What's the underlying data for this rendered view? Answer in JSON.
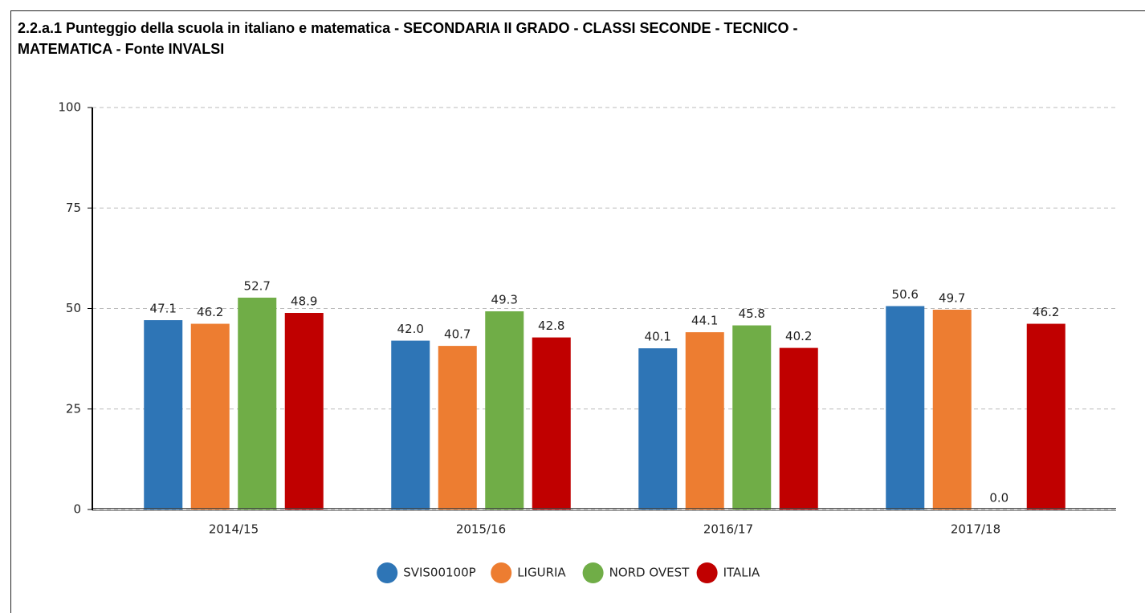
{
  "chart_data": {
    "type": "bar",
    "title": "2.2.a.1 Punteggio della scuola in italiano e matematica - SECONDARIA II GRADO - CLASSI SECONDE - TECNICO -",
    "subtitle": "MATEMATICA - Fonte INVALSI",
    "categories": [
      "2014/15",
      "2015/16",
      "2016/17",
      "2017/18"
    ],
    "series": [
      {
        "name": "SVIS00100P",
        "color": "#2e75b6",
        "values": [
          47.1,
          42.0,
          40.1,
          50.6
        ],
        "value_labels": [
          "47.1",
          "42.0",
          "40.1",
          "50.6"
        ]
      },
      {
        "name": "LIGURIA",
        "color": "#ed7d31",
        "values": [
          46.2,
          40.7,
          44.1,
          49.7
        ],
        "value_labels": [
          "46.2",
          "40.7",
          "44.1",
          "49.7"
        ]
      },
      {
        "name": "NORD OVEST",
        "color": "#70ad47",
        "values": [
          52.7,
          49.3,
          45.8,
          0.0
        ],
        "value_labels": [
          "52.7",
          "49.3",
          "45.8",
          "0.0"
        ]
      },
      {
        "name": "ITALIA",
        "color": "#c00000",
        "values": [
          48.9,
          42.8,
          40.2,
          46.2
        ],
        "value_labels": [
          "48.9",
          "42.8",
          "40.2",
          "46.2"
        ]
      }
    ],
    "ylim": [
      0,
      100
    ],
    "yticks": [
      0,
      25,
      50,
      75,
      100
    ],
    "grid": true,
    "legend": "bottom"
  }
}
